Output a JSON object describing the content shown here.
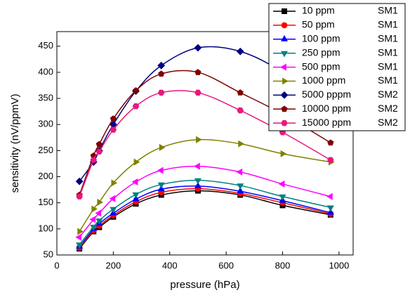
{
  "chart_data": {
    "type": "line",
    "x_label": "pressure (hPa)",
    "y_label": "sensitivity (nV/ppmV)",
    "x": [
      80,
      130,
      150,
      200,
      280,
      370,
      500,
      650,
      800,
      970
    ],
    "xlim": [
      0,
      1050
    ],
    "xticks": [
      0,
      200,
      400,
      600,
      800,
      1000
    ],
    "ylim": [
      50,
      478
    ],
    "yticks": [
      50,
      100,
      150,
      200,
      250,
      300,
      350,
      400,
      450
    ],
    "legend": "top-right",
    "series": [
      {
        "name": "10 ppm",
        "sensor": "SM1",
        "color": "#000000",
        "marker": "square",
        "values": [
          62,
          95,
          103,
          123,
          148,
          165,
          173,
          165,
          145,
          127
        ]
      },
      {
        "name": "50 ppm",
        "sensor": "SM1",
        "color": "#ff0000",
        "marker": "circle",
        "values": [
          64,
          97,
          106,
          126,
          152,
          170,
          177,
          168,
          150,
          129
        ]
      },
      {
        "name": "100 ppm",
        "sensor": "SM1",
        "color": "#0000ff",
        "marker": "triangle-up",
        "values": [
          66,
          100,
          110,
          130,
          157,
          176,
          182,
          172,
          154,
          131
        ]
      },
      {
        "name": "250 ppm",
        "sensor": "SM1",
        "color": "#008080",
        "marker": "triangle-down",
        "values": [
          70,
          104,
          116,
          138,
          166,
          185,
          193,
          183,
          162,
          141
        ]
      },
      {
        "name": "500 ppm",
        "sensor": "SM1",
        "color": "#ff00ff",
        "marker": "triangle-left",
        "values": [
          84,
          118,
          130,
          158,
          190,
          212,
          220,
          209,
          186,
          162
        ]
      },
      {
        "name": "1000 ppm",
        "sensor": "SM1",
        "color": "#808000",
        "marker": "triangle-right",
        "values": [
          95,
          138,
          151,
          188,
          228,
          256,
          271,
          263,
          244,
          228
        ]
      },
      {
        "name": "5000 pppm",
        "sensor": "SM2",
        "color": "#000080",
        "marker": "diamond",
        "values": [
          191,
          228,
          250,
          300,
          364,
          413,
          447,
          440,
          400,
          330
        ]
      },
      {
        "name": "10000 ppm",
        "sensor": "SM2",
        "color": "#800000",
        "marker": "pentagon",
        "values": [
          165,
          240,
          262,
          311,
          365,
          397,
          400,
          361,
          320,
          265
        ]
      },
      {
        "name": "15000 ppm",
        "sensor": "SM2",
        "color": "#e8177d",
        "marker": "hexagon",
        "values": [
          162,
          232,
          248,
          290,
          335,
          361,
          361,
          327,
          285,
          232
        ]
      }
    ]
  }
}
